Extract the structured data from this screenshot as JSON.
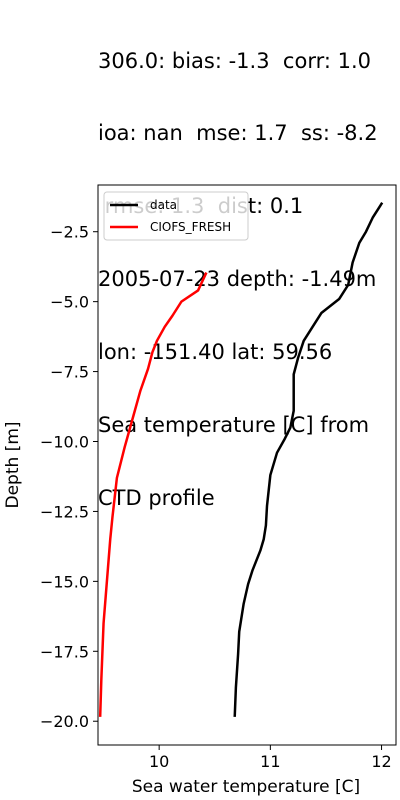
{
  "title_lines": [
    "306.0: bias: -1.3  corr: 1.0",
    "ioa: nan  mse: 1.7  ss: -8.2",
    " rmse: 1.3  dist: 0.1",
    "2005-07-23 depth: -1.49m",
    "lon: -151.40 lat: 59.56",
    "Sea temperature [C] from",
    "CTD profile"
  ],
  "chart_data": {
    "type": "line",
    "xlabel": "Sea water temperature [C]",
    "ylabel": "Depth [m]",
    "xlim": [
      9.45,
      12.13
    ],
    "ylim": [
      -20.85,
      -0.83
    ],
    "xticks": [
      10,
      11,
      12
    ],
    "xtick_labels": [
      "10",
      "11",
      "12"
    ],
    "yticks": [
      -2.5,
      -5.0,
      -7.5,
      -10.0,
      -12.5,
      -15.0,
      -17.5,
      -20.0
    ],
    "ytick_labels": [
      "−2.5",
      "−5.0",
      "−7.5",
      "−10.0",
      "−12.5",
      "−15.0",
      "−17.5",
      "−20.0"
    ],
    "grid": false,
    "legend_position": "upper-left",
    "series": [
      {
        "name": "data",
        "color": "#000000",
        "points": [
          [
            12.0,
            -1.5
          ],
          [
            11.92,
            -2.0
          ],
          [
            11.86,
            -2.5
          ],
          [
            11.8,
            -2.9
          ],
          [
            11.74,
            -3.6
          ],
          [
            11.7,
            -4.4
          ],
          [
            11.62,
            -4.9
          ],
          [
            11.46,
            -5.4
          ],
          [
            11.38,
            -5.9
          ],
          [
            11.3,
            -6.4
          ],
          [
            11.25,
            -7.0
          ],
          [
            11.21,
            -7.6
          ],
          [
            11.21,
            -8.3
          ],
          [
            11.21,
            -8.9
          ],
          [
            11.18,
            -9.5
          ],
          [
            11.13,
            -9.9
          ],
          [
            11.06,
            -10.4
          ],
          [
            11.0,
            -11.2
          ],
          [
            10.97,
            -12.3
          ],
          [
            10.96,
            -13.0
          ],
          [
            10.94,
            -13.5
          ],
          [
            10.91,
            -13.9
          ],
          [
            10.84,
            -14.6
          ],
          [
            10.8,
            -15.1
          ],
          [
            10.76,
            -15.8
          ],
          [
            10.72,
            -16.8
          ],
          [
            10.71,
            -17.6
          ],
          [
            10.69,
            -18.8
          ],
          [
            10.68,
            -19.8
          ]
        ]
      },
      {
        "name": "CIOFS_FRESH",
        "color": "#ff0000",
        "points": [
          [
            10.42,
            -4.0
          ],
          [
            10.35,
            -4.6
          ],
          [
            10.2,
            -5.0
          ],
          [
            10.12,
            -5.5
          ],
          [
            10.05,
            -5.9
          ],
          [
            9.98,
            -6.4
          ],
          [
            9.94,
            -6.8
          ],
          [
            9.9,
            -7.4
          ],
          [
            9.83,
            -8.2
          ],
          [
            9.76,
            -9.2
          ],
          [
            9.69,
            -10.2
          ],
          [
            9.62,
            -11.3
          ],
          [
            9.6,
            -12.0
          ],
          [
            9.58,
            -12.7
          ],
          [
            9.56,
            -13.5
          ],
          [
            9.54,
            -14.5
          ],
          [
            9.52,
            -15.5
          ],
          [
            9.5,
            -16.5
          ],
          [
            9.49,
            -17.5
          ],
          [
            9.48,
            -18.5
          ],
          [
            9.47,
            -19.8
          ]
        ]
      }
    ]
  }
}
